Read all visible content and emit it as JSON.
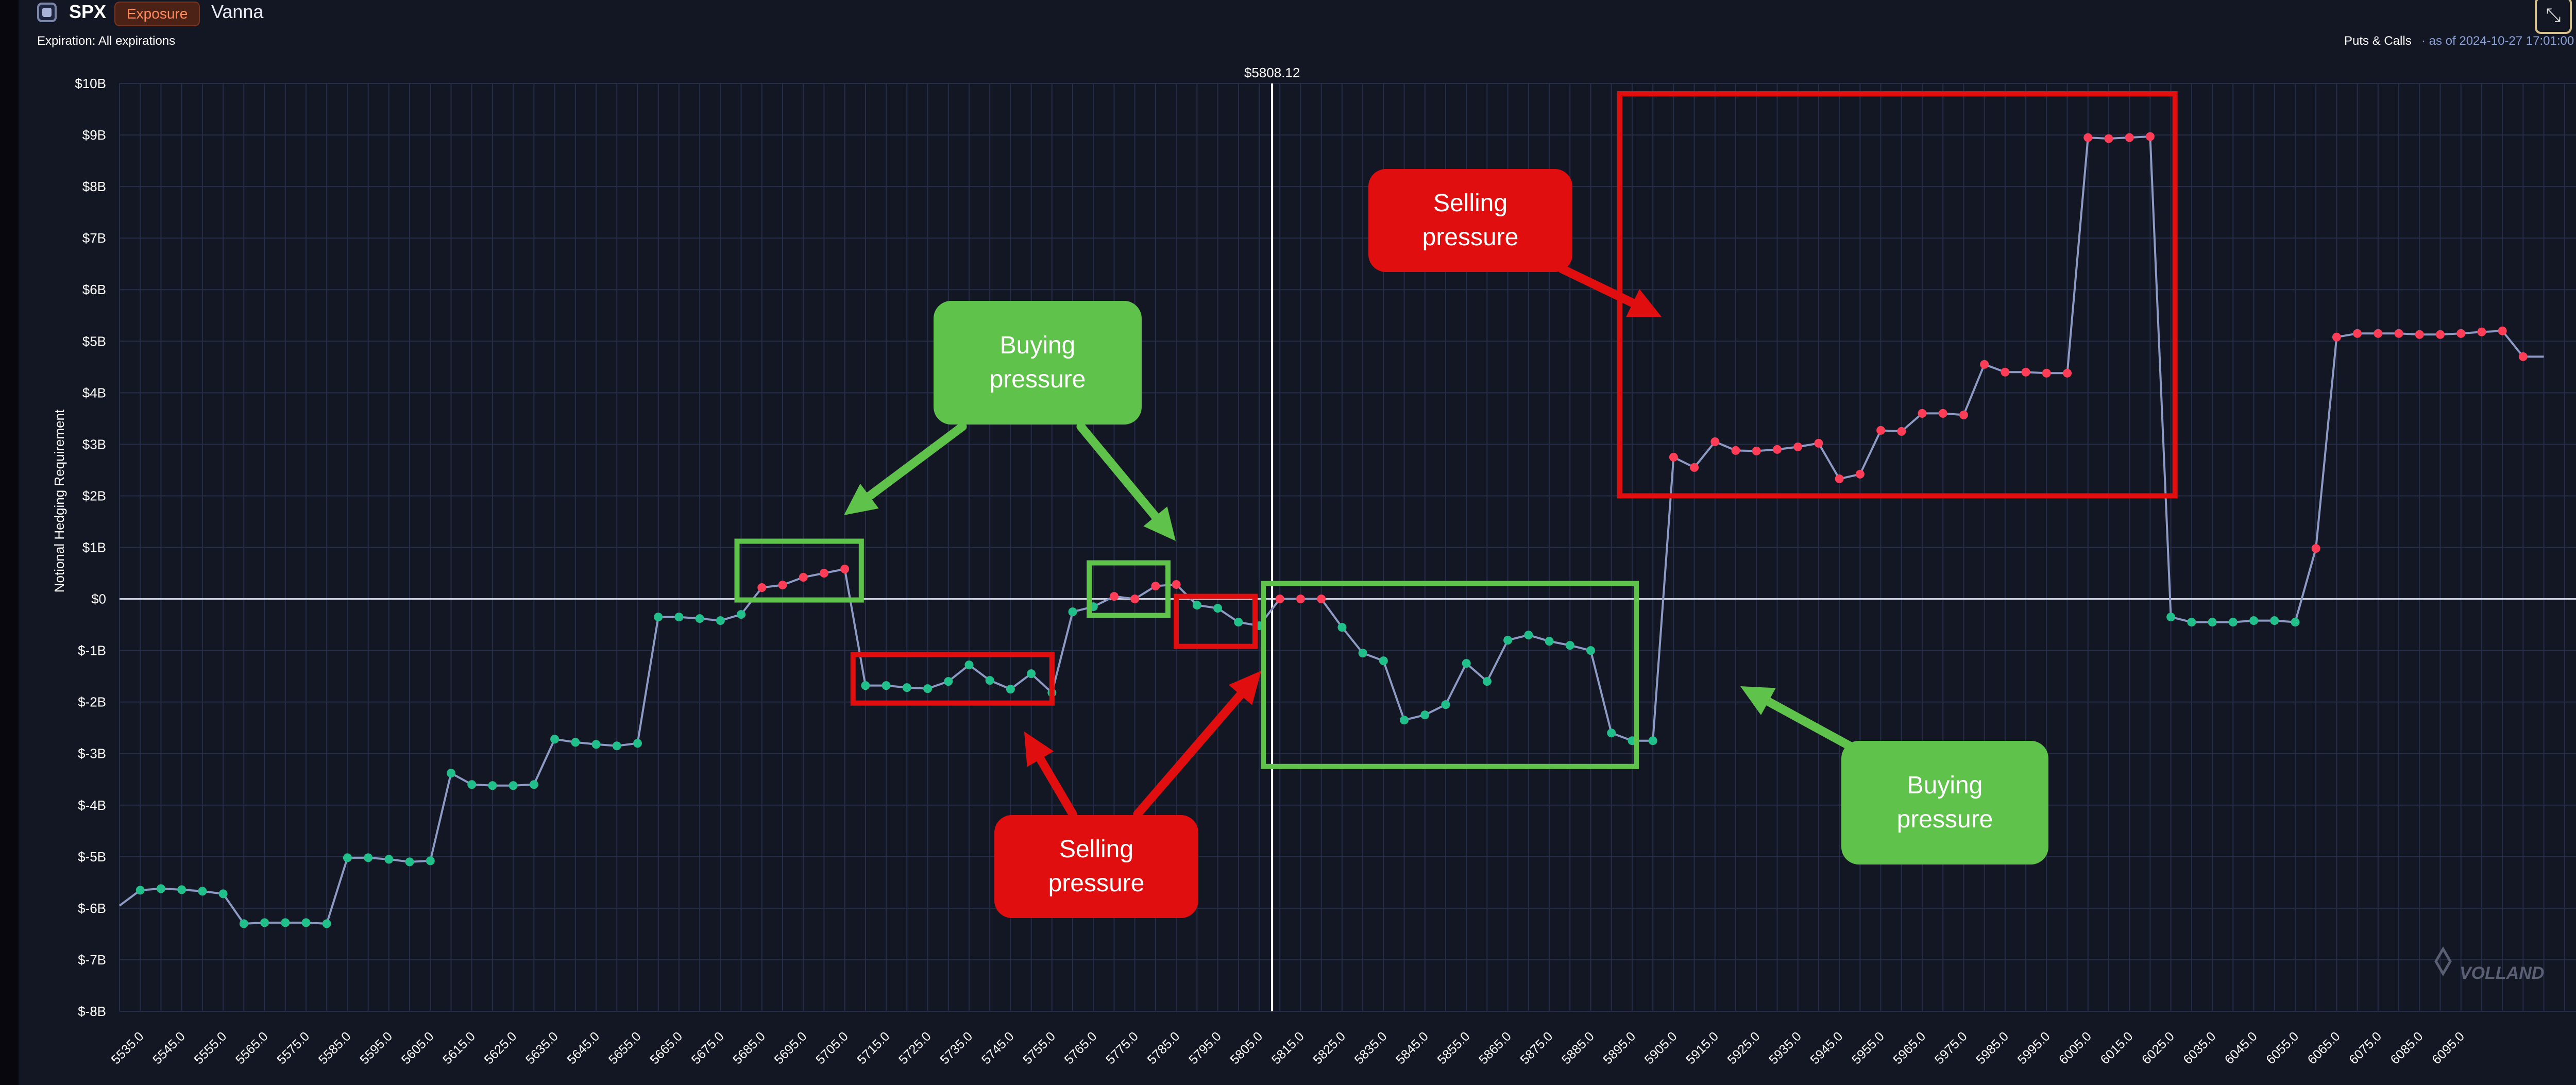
{
  "header": {
    "ticker": "SPX",
    "mode_badge": "Exposure",
    "view": "Vanna",
    "expiration": "Expiration: All expirations",
    "filter": "Puts & Calls",
    "as_of": "· as of 2024-10-27 17:01:00",
    "fullscreen_icon": "collapse-arrows-icon",
    "menu_icon": "vertical-dots-icon"
  },
  "spot_label": "$5808.12",
  "watermark": "VOLLAND",
  "annotations": {
    "buying_pressure": "Buying pressure",
    "selling_pressure": "Selling pressure"
  },
  "colors": {
    "background": "#131623",
    "grid": "#262d48",
    "line": "#8d9ac4",
    "positive_point": "#ff3d57",
    "negative_point": "#21c08b",
    "annotation_green": "#5fc24a",
    "annotation_red": "#e00e0e"
  },
  "chart_data": {
    "type": "line",
    "ylabel": "Notional Hedging Requirement",
    "xlabel": "",
    "ylim": [
      -8,
      10
    ],
    "yticks": [
      "$10B",
      "$9B",
      "$8B",
      "$7B",
      "$6B",
      "$5B",
      "$4B",
      "$3B",
      "$2B",
      "$1B",
      "$0",
      "$-1B",
      "$-2B",
      "$-3B",
      "$-4B",
      "$-5B",
      "$-6B",
      "$-7B",
      "$-8B"
    ],
    "xticks": [
      "5535.0",
      "5545.0",
      "5555.0",
      "5565.0",
      "5575.0",
      "5585.0",
      "5595.0",
      "5605.0",
      "5615.0",
      "5625.0",
      "5635.0",
      "5645.0",
      "5655.0",
      "5665.0",
      "5675.0",
      "5685.0",
      "5695.0",
      "5705.0",
      "5715.0",
      "5725.0",
      "5735.0",
      "5745.0",
      "5755.0",
      "5765.0",
      "5775.0",
      "5785.0",
      "5795.0",
      "5805.0",
      "5815.0",
      "5825.0",
      "5835.0",
      "5845.0",
      "5855.0",
      "5865.0",
      "5875.0",
      "5885.0",
      "5895.0",
      "5905.0",
      "5915.0",
      "5925.0",
      "5935.0",
      "5945.0",
      "5955.0",
      "5965.0",
      "5975.0",
      "5985.0",
      "5995.0",
      "6005.0",
      "6015.0",
      "6025.0",
      "6035.0",
      "6045.0",
      "6055.0",
      "6065.0",
      "6075.0",
      "6085.0",
      "6095.0"
    ],
    "grid": true,
    "spot": 5808.12,
    "x_start": 5530,
    "x_step": 5,
    "series": [
      {
        "values_billions": [
          -5.95,
          -5.65,
          -5.62,
          -5.64,
          -5.67,
          -5.72,
          -6.3,
          -6.28,
          -6.28,
          -6.28,
          -6.3,
          -5.02,
          -5.02,
          -5.05,
          -5.1,
          -5.08,
          -3.38,
          -3.6,
          -3.62,
          -3.62,
          -3.6,
          -2.72,
          -2.78,
          -2.82,
          -2.85,
          -2.8,
          -0.35,
          -0.35,
          -0.38,
          -0.42,
          -0.3,
          0.22,
          0.27,
          0.42,
          0.5,
          0.58,
          -1.68,
          -1.68,
          -1.72,
          -1.74,
          -1.6,
          -1.28,
          -1.58,
          -1.75,
          -1.45,
          -1.82,
          -0.25,
          -0.15,
          0.05,
          0.0,
          0.25,
          0.28,
          -0.12,
          -0.18,
          -0.45,
          -0.52,
          0.0,
          0.0,
          0.0,
          -0.55,
          -1.05,
          -1.2,
          -2.35,
          -2.25,
          -2.05,
          -1.25,
          -1.6,
          -0.8,
          -0.7,
          -0.82,
          -0.9,
          -1.0,
          -2.6,
          -2.75,
          -2.75,
          2.75,
          2.55,
          3.05,
          2.88,
          2.87,
          2.9,
          2.95,
          3.02,
          2.33,
          2.42,
          3.27,
          3.25,
          3.6,
          3.6,
          3.57,
          4.55,
          4.4,
          4.4,
          4.38,
          4.38,
          8.95,
          8.93,
          8.95,
          8.97,
          -0.35,
          -0.45,
          -0.45,
          -0.45,
          -0.42,
          -0.42,
          -0.45,
          0.98,
          5.08,
          5.15,
          5.15,
          5.15,
          5.13,
          5.13,
          5.15,
          5.18,
          5.2,
          4.7,
          4.7
        ]
      }
    ]
  }
}
